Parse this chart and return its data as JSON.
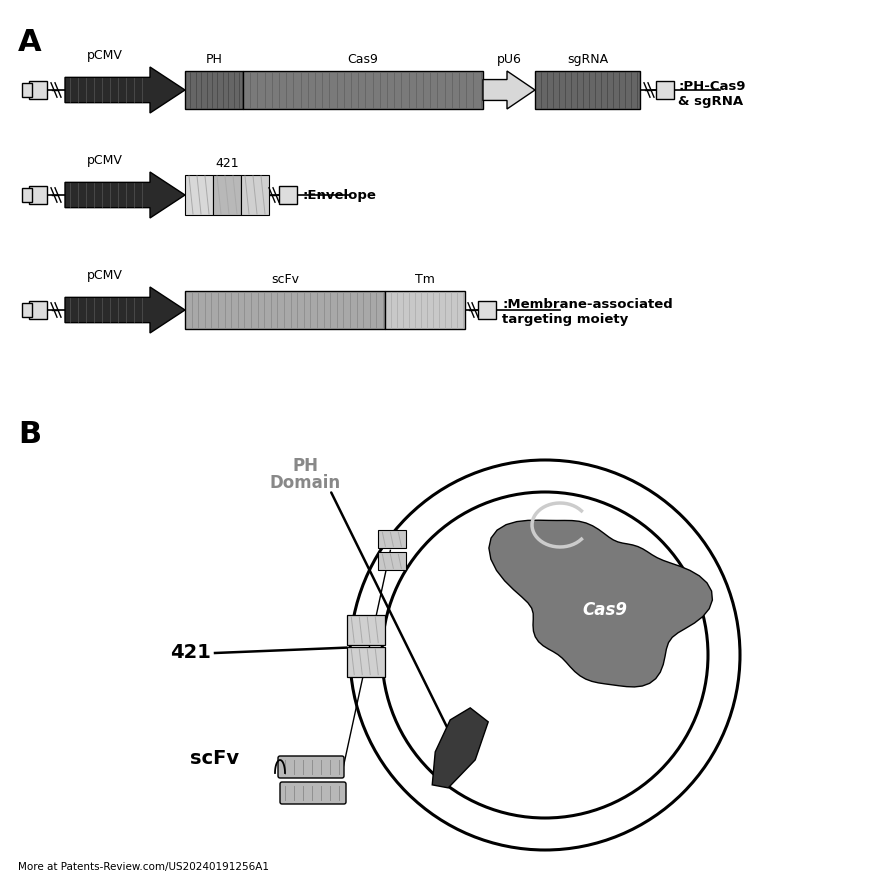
{
  "background_color": "#ffffff",
  "label_A": "A",
  "label_B": "B",
  "row1_label": ":PH-Cas9\n& sgRNA",
  "row2_label": ":Envelope",
  "row3_label": ":Membrane-associated\ntargeting moiety",
  "footer": "More at Patents-Review.com/US20240191256A1",
  "ph_domain_label": "PH\nDomain",
  "label_421": "421",
  "label_scFv": "scFv",
  "color_dark": "#2a2a2a",
  "color_med_dark": "#555555",
  "color_med": "#808080",
  "color_light_med": "#aaaaaa",
  "color_light": "#cccccc",
  "color_very_light": "#e0e0e0",
  "color_cas9": "#666666",
  "color_ph": "#444444"
}
